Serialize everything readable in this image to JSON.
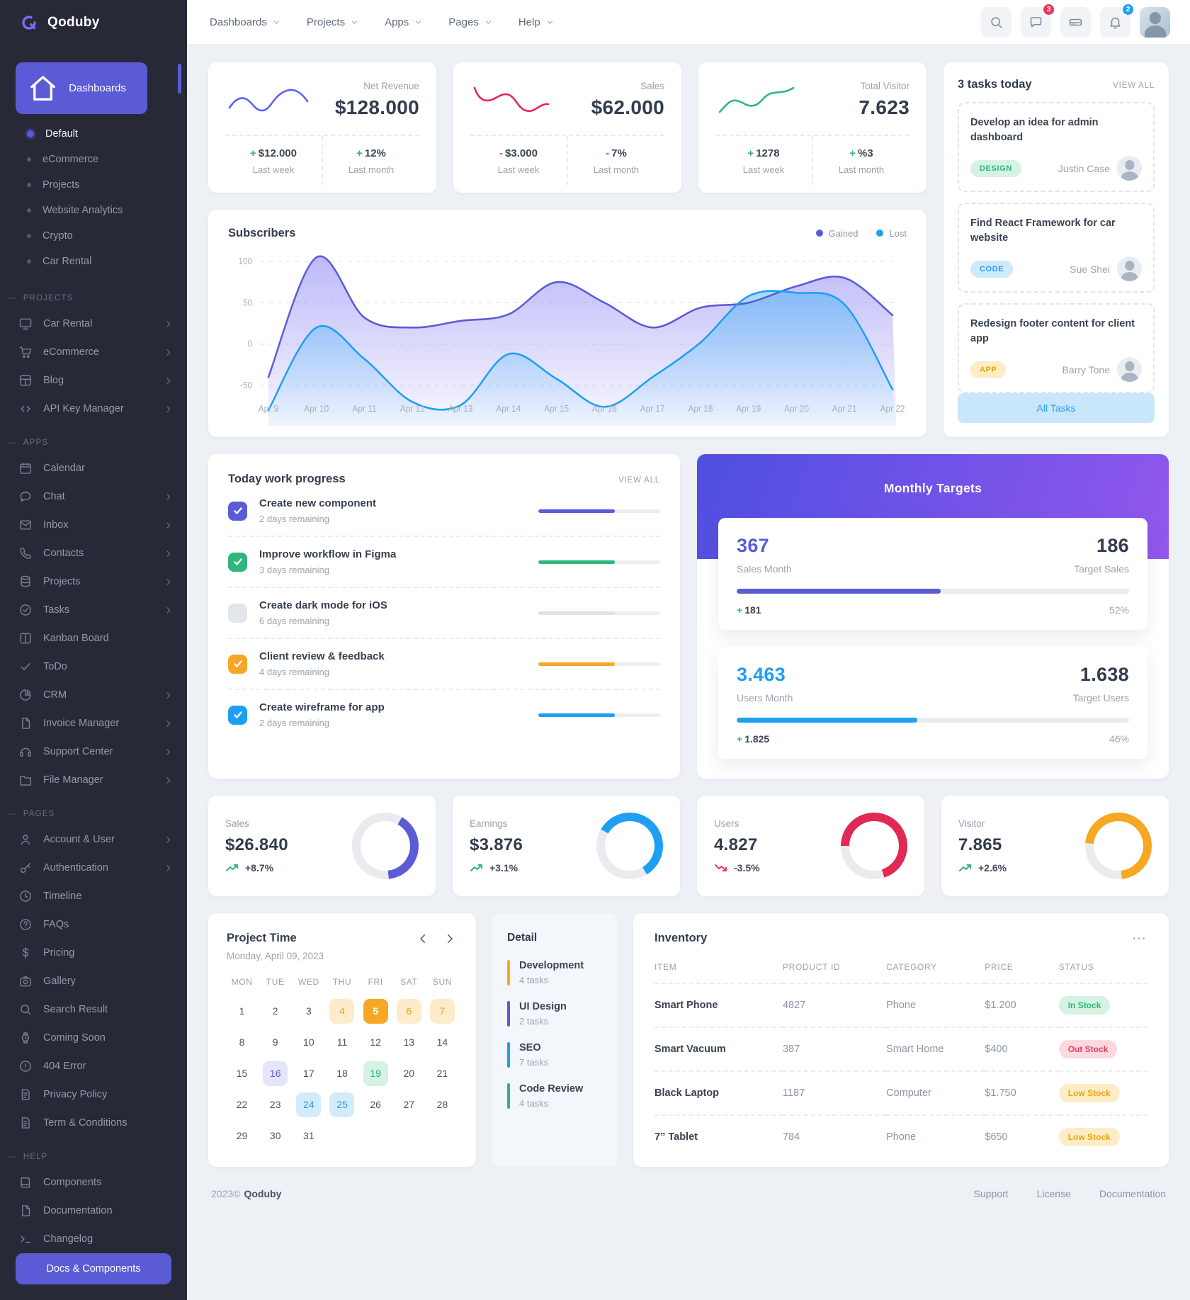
{
  "brand": {
    "name": "Qoduby"
  },
  "topbar": {
    "menus": [
      {
        "label": "Dashboards"
      },
      {
        "label": "Projects"
      },
      {
        "label": "Apps"
      },
      {
        "label": "Pages"
      },
      {
        "label": "Help"
      }
    ],
    "chat_badge": "3",
    "bell_badge": "2"
  },
  "sidebar": {
    "active_label": "Dashboards",
    "dashboard_children": [
      {
        "label": "Default",
        "active": true
      },
      {
        "label": "eCommerce",
        "active": false
      },
      {
        "label": "Projects",
        "active": false
      },
      {
        "label": "Website Analytics",
        "active": false
      },
      {
        "label": "Crypto",
        "active": false
      },
      {
        "label": "Car Rental",
        "active": false
      }
    ],
    "sections": [
      {
        "title": "PROJECTS",
        "items": [
          {
            "label": "Car Rental",
            "icon": "monitor",
            "chevron": true
          },
          {
            "label": "eCommerce",
            "icon": "cart",
            "chevron": true
          },
          {
            "label": "Blog",
            "icon": "layout",
            "chevron": true
          },
          {
            "label": "API Key Manager",
            "icon": "code",
            "chevron": true
          }
        ]
      },
      {
        "title": "APPS",
        "items": [
          {
            "label": "Calendar",
            "icon": "calendar",
            "chevron": false
          },
          {
            "label": "Chat",
            "icon": "chat",
            "chevron": true
          },
          {
            "label": "Inbox",
            "icon": "mail",
            "chevron": true
          },
          {
            "label": "Contacts",
            "icon": "phone",
            "chevron": true
          },
          {
            "label": "Projects",
            "icon": "database",
            "chevron": true
          },
          {
            "label": "Tasks",
            "icon": "check-circle",
            "chevron": true
          },
          {
            "label": "Kanban Board",
            "icon": "kanban",
            "chevron": false
          },
          {
            "label": "ToDo",
            "icon": "check",
            "chevron": false
          },
          {
            "label": "CRM",
            "icon": "pie",
            "chevron": true
          },
          {
            "label": "Invoice Manager",
            "icon": "file",
            "chevron": true
          },
          {
            "label": "Support Center",
            "icon": "headset",
            "chevron": true
          },
          {
            "label": "File Manager",
            "icon": "folder",
            "chevron": true
          }
        ]
      },
      {
        "title": "PAGES",
        "items": [
          {
            "label": "Account & User",
            "icon": "user",
            "chevron": true
          },
          {
            "label": "Authentication",
            "icon": "key",
            "chevron": true
          },
          {
            "label": "Timeline",
            "icon": "clock",
            "chevron": false
          },
          {
            "label": "FAQs",
            "icon": "help",
            "chevron": false
          },
          {
            "label": "Pricing",
            "icon": "dollar",
            "chevron": false
          },
          {
            "label": "Gallery",
            "icon": "camera",
            "chevron": false
          },
          {
            "label": "Search Result",
            "icon": "search",
            "chevron": false
          },
          {
            "label": "Coming Soon",
            "icon": "watch",
            "chevron": false
          },
          {
            "label": "404 Error",
            "icon": "alert",
            "chevron": false
          },
          {
            "label": "Privacy Policy",
            "icon": "doc",
            "chevron": false
          },
          {
            "label": "Term & Conditions",
            "icon": "doc",
            "chevron": false
          }
        ]
      },
      {
        "title": "HELP",
        "items": [
          {
            "label": "Components",
            "icon": "book",
            "chevron": false
          },
          {
            "label": "Documentation",
            "icon": "file",
            "chevron": false
          },
          {
            "label": "Changelog",
            "icon": "terminal",
            "chevron": false
          }
        ]
      }
    ],
    "docs_button": "Docs & Components"
  },
  "stats": [
    {
      "label": "Net Revenue",
      "value": "$128.000",
      "spark": "blue",
      "deltas": [
        {
          "sign": "+",
          "dir": "up",
          "text": "$12.000",
          "caption": "Last week"
        },
        {
          "sign": "+",
          "dir": "up",
          "text": "12%",
          "caption": "Last month"
        }
      ]
    },
    {
      "label": "Sales",
      "value": "$62.000",
      "spark": "red",
      "deltas": [
        {
          "sign": "-",
          "dir": "down",
          "text": "$3.000",
          "caption": "Last week"
        },
        {
          "sign": "-",
          "dir": "down",
          "text": "7%",
          "caption": "Last month"
        }
      ]
    },
    {
      "label": "Total Visitor",
      "value": "7.623",
      "spark": "green",
      "deltas": [
        {
          "sign": "+",
          "dir": "up",
          "text": "1278",
          "caption": "Last week"
        },
        {
          "sign": "+",
          "dir": "up",
          "text": "%3",
          "caption": "Last month"
        }
      ]
    }
  ],
  "tasks_panel": {
    "title": "3 tasks today",
    "view_all": "VIEW ALL",
    "button": "All Tasks",
    "tasks": [
      {
        "title": "Develop an idea for admin dashboard",
        "tag": "DESIGN",
        "tag_color": "green",
        "assignee": "Justin Case"
      },
      {
        "title": "Find React Framework for car website",
        "tag": "CODE",
        "tag_color": "blue",
        "assignee": "Sue Shei"
      },
      {
        "title": "Redesign footer content for client app",
        "tag": "APP",
        "tag_color": "amber",
        "assignee": "Barry Tone"
      }
    ]
  },
  "subscribers_chart": {
    "type": "area",
    "title": "Subscribers",
    "legend": [
      {
        "label": "Gained",
        "color": "#5b5bd6"
      },
      {
        "label": "Lost",
        "color": "#1e9ff2"
      }
    ],
    "x": [
      "Apr 9",
      "Apr 10",
      "Apr 11",
      "Apr 12",
      "Apr 13",
      "Apr 14",
      "Apr 15",
      "Apr 16",
      "Apr 17",
      "Apr 18",
      "Apr 19",
      "Apr 20",
      "Apr 21",
      "Apr 22"
    ],
    "yticks": [
      100,
      50,
      0,
      -50
    ],
    "ylim": [
      -90,
      115
    ],
    "grid": true,
    "legend_position": "top-right",
    "series": [
      {
        "name": "Gained",
        "color": "#5b5bd6",
        "values": [
          -40,
          105,
          32,
          20,
          28,
          36,
          75,
          50,
          20,
          44,
          50,
          70,
          80,
          35
        ]
      },
      {
        "name": "Lost",
        "color": "#1e9ff2",
        "values": [
          -80,
          20,
          -18,
          -70,
          -74,
          -12,
          -42,
          -76,
          -40,
          2,
          58,
          62,
          48,
          -55
        ]
      }
    ]
  },
  "work_progress": {
    "title": "Today work progress",
    "view_all": "VIEW ALL",
    "items": [
      {
        "title": "Create new component",
        "sub": "2 days remaining",
        "color": "#5b5bd6",
        "checked": true,
        "progress": 63
      },
      {
        "title": "Improve workflow in Figma",
        "sub": "3 days remaining",
        "color": "#2eb67d",
        "checked": true,
        "progress": 63
      },
      {
        "title": "Create dark mode for iOS",
        "sub": "6 days remaining",
        "color": "#e3e6ea",
        "checked": false,
        "progress": 63
      },
      {
        "title": "Client review & feedback",
        "sub": "4 days remaining",
        "color": "#f6a723",
        "checked": true,
        "progress": 63
      },
      {
        "title": "Create wireframe for app",
        "sub": "2 days remaining",
        "color": "#1e9ff2",
        "checked": true,
        "progress": 63
      }
    ]
  },
  "monthly_targets": {
    "title": "Monthly Targets",
    "cards": [
      {
        "value": "367",
        "value_color": "indigo",
        "label": "Sales Month",
        "target_value": "186",
        "target_label": "Target Sales",
        "percent": 52,
        "gain": "181",
        "percent_label": "52%",
        "bar_color": "#5b5bd6"
      },
      {
        "value": "3.463",
        "value_color": "blue",
        "label": "Users Month",
        "target_value": "1.638",
        "target_label": "Target Users",
        "percent": 46,
        "gain": "1.825",
        "percent_label": "46%",
        "bar_color": "#1e9ff2"
      }
    ]
  },
  "kpi_donuts": [
    {
      "label": "Sales",
      "value": "$26.840",
      "trend": "+8.7%",
      "dir": "up",
      "color": "#5b5bd6",
      "percent": 40,
      "start": 30
    },
    {
      "label": "Earnings",
      "value": "$3.876",
      "trend": "+3.1%",
      "dir": "up",
      "color": "#1e9ff2",
      "percent": 58,
      "start": 300
    },
    {
      "label": "Users",
      "value": "4.827",
      "trend": "-3.5%",
      "dir": "down",
      "color": "#e02954",
      "percent": 70,
      "start": 270
    },
    {
      "label": "Visitor",
      "value": "7.865",
      "trend": "+2.6%",
      "dir": "up",
      "color": "#f6a723",
      "percent": 72,
      "start": 275
    }
  ],
  "calendar": {
    "title": "Project Time",
    "subtitle": "Monday, April 09, 2023",
    "dow": [
      "MON",
      "TUE",
      "WED",
      "THU",
      "FRI",
      "SAT",
      "SUN"
    ],
    "days_in_month": 31,
    "marks": {
      "4": "amber-light",
      "5": "amber-solid",
      "6": "amber-light",
      "7": "amber-light",
      "16": "indigo-light",
      "19": "green-light",
      "24": "blue-light",
      "25": "blue-light"
    }
  },
  "detail_panel": {
    "title": "Detail",
    "items": [
      {
        "label": "Development",
        "sub": "4 tasks",
        "color": "#f6a723"
      },
      {
        "label": "UI Design",
        "sub": "2 tasks",
        "color": "#5b5bd6"
      },
      {
        "label": "SEO",
        "sub": "7 tasks",
        "color": "#1e9ff2"
      },
      {
        "label": "Code Review",
        "sub": "4 tasks",
        "color": "#2eb67d"
      }
    ]
  },
  "inventory": {
    "title": "Inventory",
    "headers": [
      "ITEM",
      "PRODUCT ID",
      "CATEGORY",
      "PRICE",
      "STATUS"
    ],
    "rows": [
      {
        "item": "Smart Phone",
        "product_id": "4827",
        "category": "Phone",
        "price": "$1.200",
        "status": "In Stock",
        "status_color": "green"
      },
      {
        "item": "Smart Vacuum",
        "product_id": "387",
        "category": "Smart Home",
        "price": "$400",
        "status": "Out Stock",
        "status_color": "red"
      },
      {
        "item": "Black Laptop",
        "product_id": "1187",
        "category": "Computer",
        "price": "$1.750",
        "status": "Low Stock",
        "status_color": "amber"
      },
      {
        "item": "7” Tablet",
        "product_id": "784",
        "category": "Phone",
        "price": "$650",
        "status": "Low Stock",
        "status_color": "amber"
      }
    ]
  },
  "footer": {
    "year": "2023©",
    "brand": "Qoduby",
    "links": [
      "Support",
      "License",
      "Documentation"
    ]
  },
  "colors": {
    "accent": "#5b5bd6",
    "blue": "#1e9ff2",
    "green": "#2eb67d",
    "red": "#ee3558",
    "amber": "#f6a723"
  }
}
